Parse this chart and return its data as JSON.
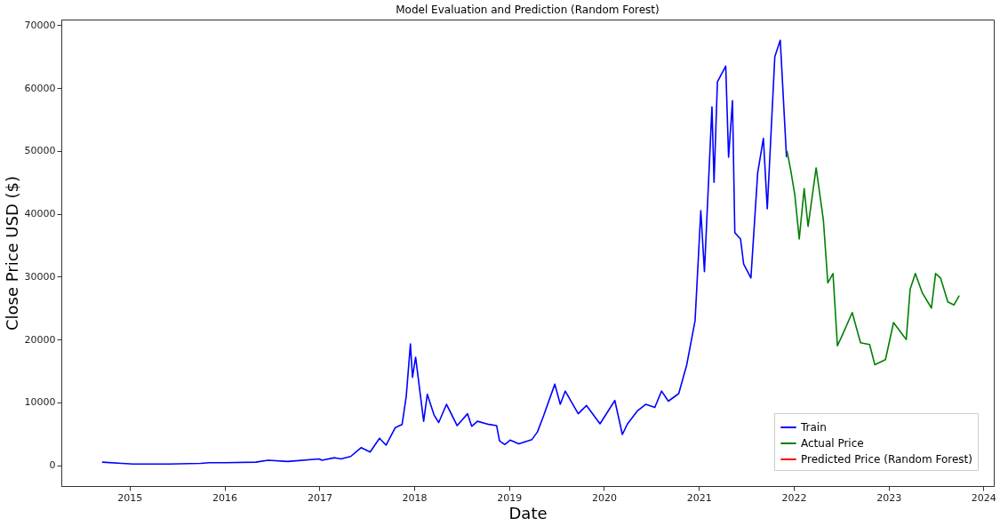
{
  "chart_data": {
    "type": "line",
    "title": "Model Evaluation and Prediction (Random Forest)",
    "xlabel": "Date",
    "ylabel": "Close Price USD ($)",
    "xlim": [
      "2014-04-13",
      "2024-02-10"
    ],
    "xticks": [
      "2015",
      "2016",
      "2017",
      "2018",
      "2019",
      "2020",
      "2021",
      "2022",
      "2023",
      "2024"
    ],
    "ylim": [
      -3300,
      70900
    ],
    "yticks": [
      0,
      10000,
      20000,
      30000,
      40000,
      50000,
      60000,
      70000
    ],
    "grid": false,
    "legend": "bottom right",
    "line_style": "solid",
    "marker": "none",
    "series": [
      {
        "name": "Train",
        "color": "#0000ff",
        "x": [
          "2014-09-17",
          "2014-12-01",
          "2015-01-15",
          "2015-06-01",
          "2015-10-01",
          "2015-11-05",
          "2016-01-01",
          "2016-05-01",
          "2016-06-17",
          "2016-09-01",
          "2016-12-31",
          "2017-01-10",
          "2017-03-01",
          "2017-03-25",
          "2017-05-01",
          "2017-06-10",
          "2017-07-15",
          "2017-08-20",
          "2017-09-14",
          "2017-10-20",
          "2017-11-15",
          "2017-12-01",
          "2017-12-17",
          "2017-12-25",
          "2018-01-06",
          "2018-02-06",
          "2018-02-20",
          "2018-03-18",
          "2018-04-05",
          "2018-05-05",
          "2018-06-15",
          "2018-07-25",
          "2018-08-10",
          "2018-09-01",
          "2018-10-15",
          "2018-11-14",
          "2018-11-25",
          "2018-12-15",
          "2019-01-05",
          "2019-02-07",
          "2019-03-30",
          "2019-04-20",
          "2019-05-14",
          "2019-06-26",
          "2019-07-17",
          "2019-08-05",
          "2019-09-24",
          "2019-10-26",
          "2019-12-17",
          "2020-02-12",
          "2020-03-12",
          "2020-04-01",
          "2020-05-10",
          "2020-06-10",
          "2020-07-15",
          "2020-08-10",
          "2020-09-05",
          "2020-10-15",
          "2020-11-15",
          "2020-12-17",
          "2021-01-08",
          "2021-01-22",
          "2021-02-20",
          "2021-02-28",
          "2021-03-13",
          "2021-04-14",
          "2021-04-25",
          "2021-05-10",
          "2021-05-19",
          "2021-06-10",
          "2021-06-22",
          "2021-07-20",
          "2021-08-15",
          "2021-09-06",
          "2021-09-21",
          "2021-10-20",
          "2021-11-10",
          "2021-12-04"
        ],
        "values": [
          500,
          300,
          200,
          200,
          300,
          400,
          400,
          500,
          800,
          600,
          1000,
          800,
          1200,
          1000,
          1400,
          2800,
          2100,
          4300,
          3200,
          6000,
          6500,
          11000,
          19300,
          14000,
          17200,
          7000,
          11300,
          8000,
          6800,
          9700,
          6300,
          8200,
          6200,
          7000,
          6500,
          6300,
          3900,
          3300,
          4000,
          3400,
          4100,
          5300,
          7900,
          12900,
          9700,
          11800,
          8200,
          9500,
          6600,
          10300,
          4900,
          6600,
          8700,
          9700,
          9200,
          11800,
          10200,
          11400,
          16000,
          23000,
          40500,
          30800,
          57000,
          45000,
          61000,
          63500,
          49000,
          58000,
          37000,
          36000,
          32000,
          29800,
          46500,
          52000,
          40800,
          65000,
          67600,
          49000
        ]
      },
      {
        "name": "Actual Price",
        "color": "#008000",
        "x": [
          "2021-12-06",
          "2021-12-20",
          "2022-01-05",
          "2022-01-22",
          "2022-02-10",
          "2022-02-25",
          "2022-03-28",
          "2022-04-25",
          "2022-05-12",
          "2022-06-01",
          "2022-06-18",
          "2022-07-10",
          "2022-08-14",
          "2022-09-15",
          "2022-10-20",
          "2022-11-09",
          "2022-12-20",
          "2023-01-20",
          "2023-03-10",
          "2023-03-25",
          "2023-04-14",
          "2023-05-10",
          "2023-06-15",
          "2023-07-01",
          "2023-07-20",
          "2023-08-17",
          "2023-09-10",
          "2023-09-30"
        ],
        "values": [
          50000,
          47000,
          43000,
          36000,
          44000,
          38000,
          47300,
          39000,
          29000,
          30500,
          19000,
          21000,
          24300,
          19500,
          19200,
          16000,
          16800,
          22700,
          20000,
          28000,
          30500,
          27500,
          25000,
          30500,
          29800,
          26000,
          25500,
          27000
        ]
      },
      {
        "name": "Predicted Price (Random Forest)",
        "color": "#ff0000"
      }
    ]
  }
}
